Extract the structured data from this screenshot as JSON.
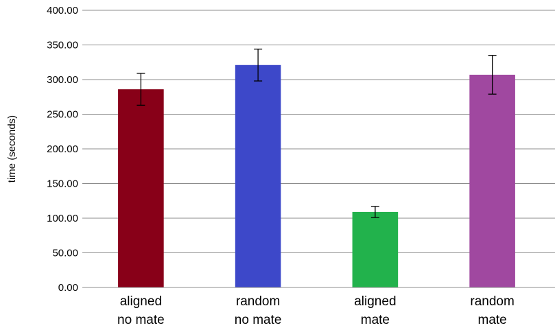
{
  "chart_data": {
    "type": "bar",
    "title": "",
    "xlabel": "",
    "ylabel": "time (seconds)",
    "ylim": [
      0,
      400
    ],
    "yticks": [
      "0.00",
      "50.00",
      "100.00",
      "150.00",
      "200.00",
      "250.00",
      "300.00",
      "350.00",
      "400.00"
    ],
    "grid": true,
    "legend": "none",
    "categories": [
      [
        "aligned",
        "no mate"
      ],
      [
        "random",
        "no mate"
      ],
      [
        "aligned",
        "mate"
      ],
      [
        "random",
        "mate"
      ]
    ],
    "values": [
      286,
      321,
      109,
      307
    ],
    "error": [
      23,
      23,
      8,
      28
    ],
    "colors": [
      "#880018",
      "#3d48c9",
      "#22b24c",
      "#a048a0"
    ]
  }
}
